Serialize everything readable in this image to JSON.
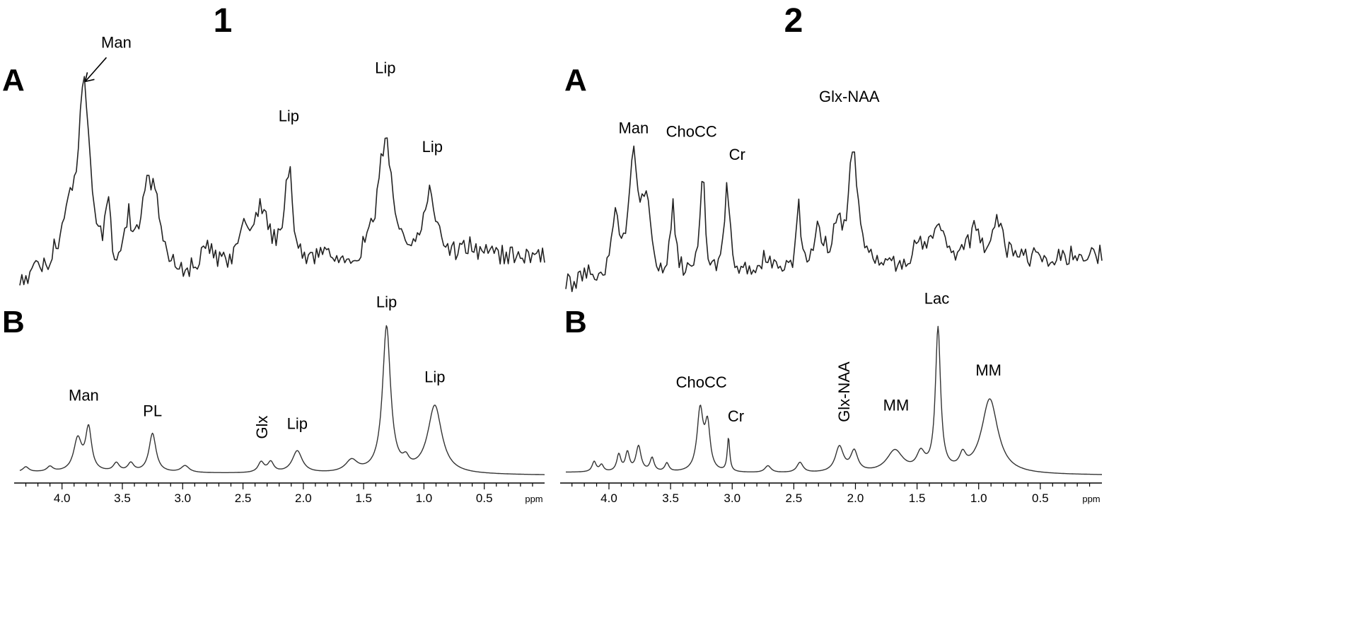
{
  "chart_data": [
    {
      "panel": "1",
      "type": "line",
      "x_unit": "ppm",
      "xlim": [
        4.35,
        0.0
      ],
      "ticks": [
        "4.0",
        "3.5",
        "3.0",
        "2.5",
        "2.0",
        "1.5",
        "1.0",
        "0.5"
      ],
      "rows": [
        {
          "label": "A",
          "peaks": [
            {
              "ppm": 4.2,
              "h": 0.06,
              "w": 0.04
            },
            {
              "ppm": 4.05,
              "h": 0.08,
              "w": 0.04
            },
            {
              "ppm": 3.95,
              "h": 0.22,
              "w": 0.04
            },
            {
              "ppm": 3.82,
              "h": 0.82,
              "w": 0.065
            },
            {
              "ppm": 3.62,
              "h": 0.26,
              "w": 0.025
            },
            {
              "ppm": 3.45,
              "h": 0.22,
              "w": 0.03
            },
            {
              "ppm": 3.3,
              "h": 0.33,
              "w": 0.06
            },
            {
              "ppm": 3.22,
              "h": 0.26,
              "w": 0.04
            },
            {
              "ppm": 2.8,
              "h": 0.1,
              "w": 0.05
            },
            {
              "ppm": 2.5,
              "h": 0.14,
              "w": 0.06
            },
            {
              "ppm": 2.35,
              "h": 0.25,
              "w": 0.08
            },
            {
              "ppm": 2.12,
              "h": 0.4,
              "w": 0.04
            },
            {
              "ppm": 1.82,
              "h": 0.06,
              "w": 0.05
            },
            {
              "ppm": 1.32,
              "h": 0.52,
              "w": 0.075
            },
            {
              "ppm": 0.95,
              "h": 0.28,
              "w": 0.06
            },
            {
              "ppm": 0.62,
              "h": 0.05,
              "w": 0.05
            }
          ],
          "labels": [
            {
              "text": "Man",
              "ppm": 3.55,
              "y": 0.98,
              "arrow": true
            },
            {
              "text": "Lip",
              "ppm": 2.12,
              "y": 0.62
            },
            {
              "text": "Lip",
              "ppm": 1.32,
              "y": 0.8
            },
            {
              "text": "Lip",
              "ppm": 0.93,
              "y": 0.45
            }
          ]
        },
        {
          "label": "B",
          "peaks": [
            {
              "ppm": 4.3,
              "h": 0.03,
              "w": 0.03
            },
            {
              "ppm": 4.1,
              "h": 0.03,
              "w": 0.03
            },
            {
              "ppm": 3.87,
              "h": 0.19,
              "w": 0.04
            },
            {
              "ppm": 3.78,
              "h": 0.25,
              "w": 0.03
            },
            {
              "ppm": 3.55,
              "h": 0.05,
              "w": 0.03
            },
            {
              "ppm": 3.43,
              "h": 0.05,
              "w": 0.03
            },
            {
              "ppm": 3.25,
              "h": 0.23,
              "w": 0.035
            },
            {
              "ppm": 2.98,
              "h": 0.04,
              "w": 0.04
            },
            {
              "ppm": 2.35,
              "h": 0.06,
              "w": 0.03
            },
            {
              "ppm": 2.27,
              "h": 0.06,
              "w": 0.03
            },
            {
              "ppm": 2.05,
              "h": 0.13,
              "w": 0.05
            },
            {
              "ppm": 1.6,
              "h": 0.07,
              "w": 0.06
            },
            {
              "ppm": 1.31,
              "h": 0.86,
              "w": 0.04
            },
            {
              "ppm": 1.15,
              "h": 0.05,
              "w": 0.03
            },
            {
              "ppm": 0.91,
              "h": 0.4,
              "w": 0.07
            }
          ],
          "labels": [
            {
              "text": "Man",
              "ppm": 3.82,
              "y": 0.4
            },
            {
              "text": "PL",
              "ppm": 3.25,
              "y": 0.31
            },
            {
              "text": "Glx",
              "ppm": 2.34,
              "y": 0.18,
              "rotate": true
            },
            {
              "text": "Lip",
              "ppm": 2.05,
              "y": 0.24
            },
            {
              "text": "Lip",
              "ppm": 1.31,
              "y": 0.96
            },
            {
              "text": "Lip",
              "ppm": 0.91,
              "y": 0.52
            }
          ]
        }
      ]
    },
    {
      "panel": "2",
      "type": "line",
      "x_unit": "ppm",
      "xlim": [
        4.35,
        0.0
      ],
      "ticks": [
        "4.0",
        "3.5",
        "3.0",
        "2.5",
        "2.0",
        "1.5",
        "1.0",
        "0.5"
      ],
      "rows": [
        {
          "label": "A",
          "peaks": [
            {
              "ppm": 4.15,
              "h": 0.05,
              "w": 0.04
            },
            {
              "ppm": 3.95,
              "h": 0.25,
              "w": 0.04
            },
            {
              "ppm": 3.8,
              "h": 0.52,
              "w": 0.045
            },
            {
              "ppm": 3.7,
              "h": 0.3,
              "w": 0.04
            },
            {
              "ppm": 3.48,
              "h": 0.28,
              "w": 0.025
            },
            {
              "ppm": 3.24,
              "h": 0.42,
              "w": 0.025
            },
            {
              "ppm": 3.04,
              "h": 0.4,
              "w": 0.025
            },
            {
              "ppm": 2.72,
              "h": 0.08,
              "w": 0.04
            },
            {
              "ppm": 2.46,
              "h": 0.27,
              "w": 0.02
            },
            {
              "ppm": 2.3,
              "h": 0.15,
              "w": 0.05
            },
            {
              "ppm": 2.15,
              "h": 0.18,
              "w": 0.04
            },
            {
              "ppm": 2.02,
              "h": 0.48,
              "w": 0.045
            },
            {
              "ppm": 1.5,
              "h": 0.07,
              "w": 0.05
            },
            {
              "ppm": 1.32,
              "h": 0.18,
              "w": 0.06
            },
            {
              "ppm": 1.03,
              "h": 0.14,
              "w": 0.05
            },
            {
              "ppm": 0.85,
              "h": 0.15,
              "w": 0.05
            }
          ],
          "labels": [
            {
              "text": "Man",
              "ppm": 3.8,
              "y": 0.62
            },
            {
              "text": "ChoCC",
              "ppm": 3.33,
              "y": 0.59
            },
            {
              "text": "Cr",
              "ppm": 2.96,
              "y": 0.48
            },
            {
              "text": "Glx-NAA",
              "ppm": 2.05,
              "y": 0.7
            }
          ]
        },
        {
          "label": "B",
          "peaks": [
            {
              "ppm": 4.12,
              "h": 0.06,
              "w": 0.02
            },
            {
              "ppm": 4.06,
              "h": 0.04,
              "w": 0.02
            },
            {
              "ppm": 3.92,
              "h": 0.1,
              "w": 0.02
            },
            {
              "ppm": 3.85,
              "h": 0.11,
              "w": 0.02
            },
            {
              "ppm": 3.76,
              "h": 0.15,
              "w": 0.025
            },
            {
              "ppm": 3.65,
              "h": 0.08,
              "w": 0.02
            },
            {
              "ppm": 3.53,
              "h": 0.05,
              "w": 0.02
            },
            {
              "ppm": 3.26,
              "h": 0.36,
              "w": 0.03
            },
            {
              "ppm": 3.2,
              "h": 0.26,
              "w": 0.025
            },
            {
              "ppm": 3.03,
              "h": 0.2,
              "w": 0.012
            },
            {
              "ppm": 2.71,
              "h": 0.04,
              "w": 0.03
            },
            {
              "ppm": 2.45,
              "h": 0.06,
              "w": 0.03
            },
            {
              "ppm": 2.13,
              "h": 0.15,
              "w": 0.04
            },
            {
              "ppm": 2.01,
              "h": 0.12,
              "w": 0.035
            },
            {
              "ppm": 1.68,
              "h": 0.13,
              "w": 0.08
            },
            {
              "ppm": 1.47,
              "h": 0.1,
              "w": 0.04
            },
            {
              "ppm": 1.33,
              "h": 0.84,
              "w": 0.025
            },
            {
              "ppm": 1.13,
              "h": 0.08,
              "w": 0.03
            },
            {
              "ppm": 0.91,
              "h": 0.44,
              "w": 0.08
            }
          ],
          "labels": [
            {
              "text": "ChoCC",
              "ppm": 3.25,
              "y": 0.48
            },
            {
              "text": "Cr",
              "ppm": 2.97,
              "y": 0.28
            },
            {
              "text": "Glx-NAA",
              "ppm": 2.09,
              "y": 0.28,
              "rotate": true
            },
            {
              "text": "MM",
              "ppm": 1.67,
              "y": 0.35
            },
            {
              "text": "Lac",
              "ppm": 1.34,
              "y": 0.98
            },
            {
              "text": "MM",
              "ppm": 0.92,
              "y": 0.56
            }
          ]
        }
      ]
    }
  ]
}
